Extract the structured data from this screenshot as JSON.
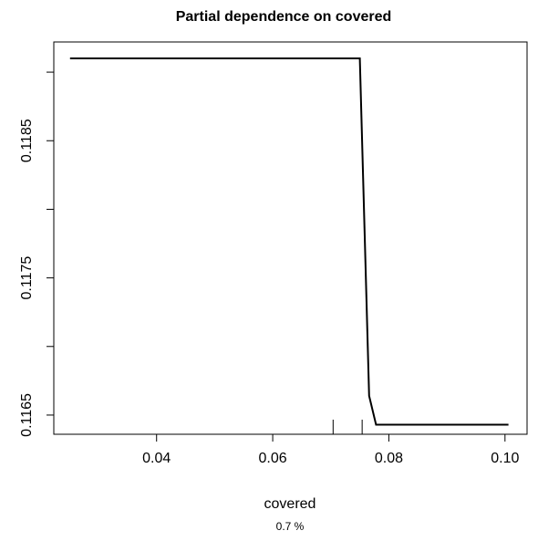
{
  "chart_data": {
    "type": "line",
    "title": "Partial dependence on covered",
    "xlabel": "covered",
    "ylabel": "",
    "subtitle": "0.7 %",
    "xlim": [
      0.0223,
      0.1038
    ],
    "ylim": [
      0.11636,
      0.11922
    ],
    "x_ticks": [
      0.04,
      0.06,
      0.08,
      0.1
    ],
    "x_tick_labels": [
      "0.04",
      "0.06",
      "0.08",
      "0.10"
    ],
    "y_ticks": [
      0.1165,
      0.117,
      0.1175,
      0.118,
      0.1185,
      0.119
    ],
    "y_tick_labels": [
      "0.1165",
      "",
      "0.1175",
      "",
      "0.1185",
      ""
    ],
    "grid": false,
    "series": [
      {
        "x": [
          0.0251,
          0.075,
          0.0766,
          0.0778,
          0.1006
        ],
        "y": [
          0.1191,
          0.1191,
          0.11664,
          0.11643,
          0.11643
        ]
      }
    ],
    "rug": [
      0.0704,
      0.0754
    ]
  }
}
